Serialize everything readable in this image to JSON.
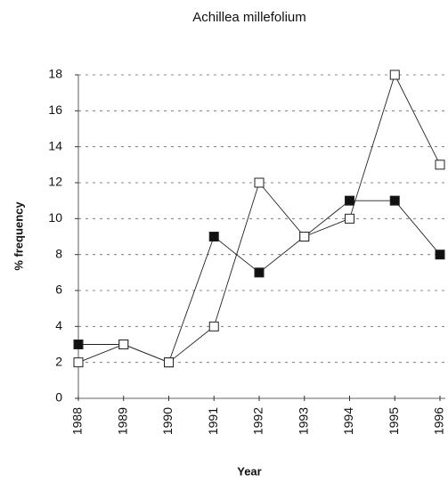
{
  "chart_data": {
    "type": "line",
    "title": "Achillea millefolium",
    "x_label": "Year",
    "y_label": "% frequency",
    "categories": [
      "1988",
      "1989",
      "1990",
      "1991",
      "1992",
      "1993",
      "1994",
      "1995",
      "1996"
    ],
    "series": [
      {
        "color": "#111111",
        "marker": "filled-square",
        "values": [
          3,
          3,
          2,
          9,
          7,
          9,
          11,
          11,
          8
        ]
      },
      {
        "color": "#ffffff",
        "marker": "open-square",
        "values": [
          2,
          3,
          2,
          4,
          12,
          9,
          10,
          18,
          13
        ]
      }
    ],
    "ylim": [
      0,
      18
    ],
    "yticks": [
      0,
      2,
      4,
      6,
      8,
      10,
      12,
      14,
      16,
      18
    ],
    "grid": true
  }
}
